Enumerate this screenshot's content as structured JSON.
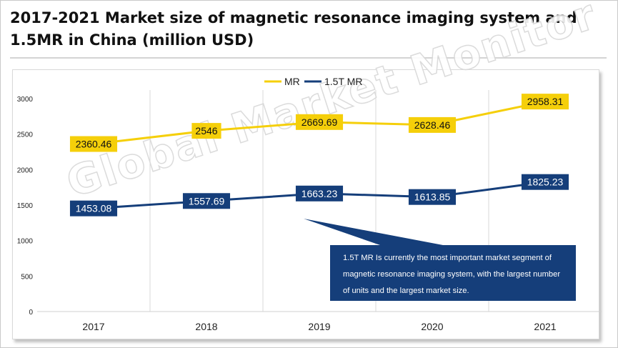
{
  "title": "2017-2021 Market size of magnetic resonance imaging system and 1.5MR in China (million USD)",
  "watermark": "Global Market Monitor",
  "callout": "1.5T MR Is currently the most important market segment of magnetic resonance imaging system, with the largest number of units and the largest market size.",
  "colors": {
    "mr": "#f5cf0a",
    "mr15": "#153e7a",
    "grid": "#d9d9d9"
  },
  "chart_data": {
    "type": "line",
    "categories": [
      "2017",
      "2018",
      "2019",
      "2020",
      "2021"
    ],
    "series": [
      {
        "name": "MR",
        "values": [
          2360.46,
          2546,
          2669.69,
          2628.46,
          2958.31
        ],
        "labels": [
          "2360.46",
          "2546",
          "2669.69",
          "2628.46",
          "2958.31"
        ]
      },
      {
        "name": "1.5T MR",
        "values": [
          1453.08,
          1557.69,
          1663.23,
          1613.85,
          1825.23
        ],
        "labels": [
          "1453.08",
          "1557.69",
          "1663.23",
          "1613.85",
          "1825.23"
        ]
      }
    ],
    "yticks": [
      "0",
      "500",
      "1000",
      "1500",
      "2000",
      "2500",
      "3000"
    ],
    "ylim": [
      0,
      3000
    ],
    "grid": "vertical",
    "legend": "top-center"
  }
}
